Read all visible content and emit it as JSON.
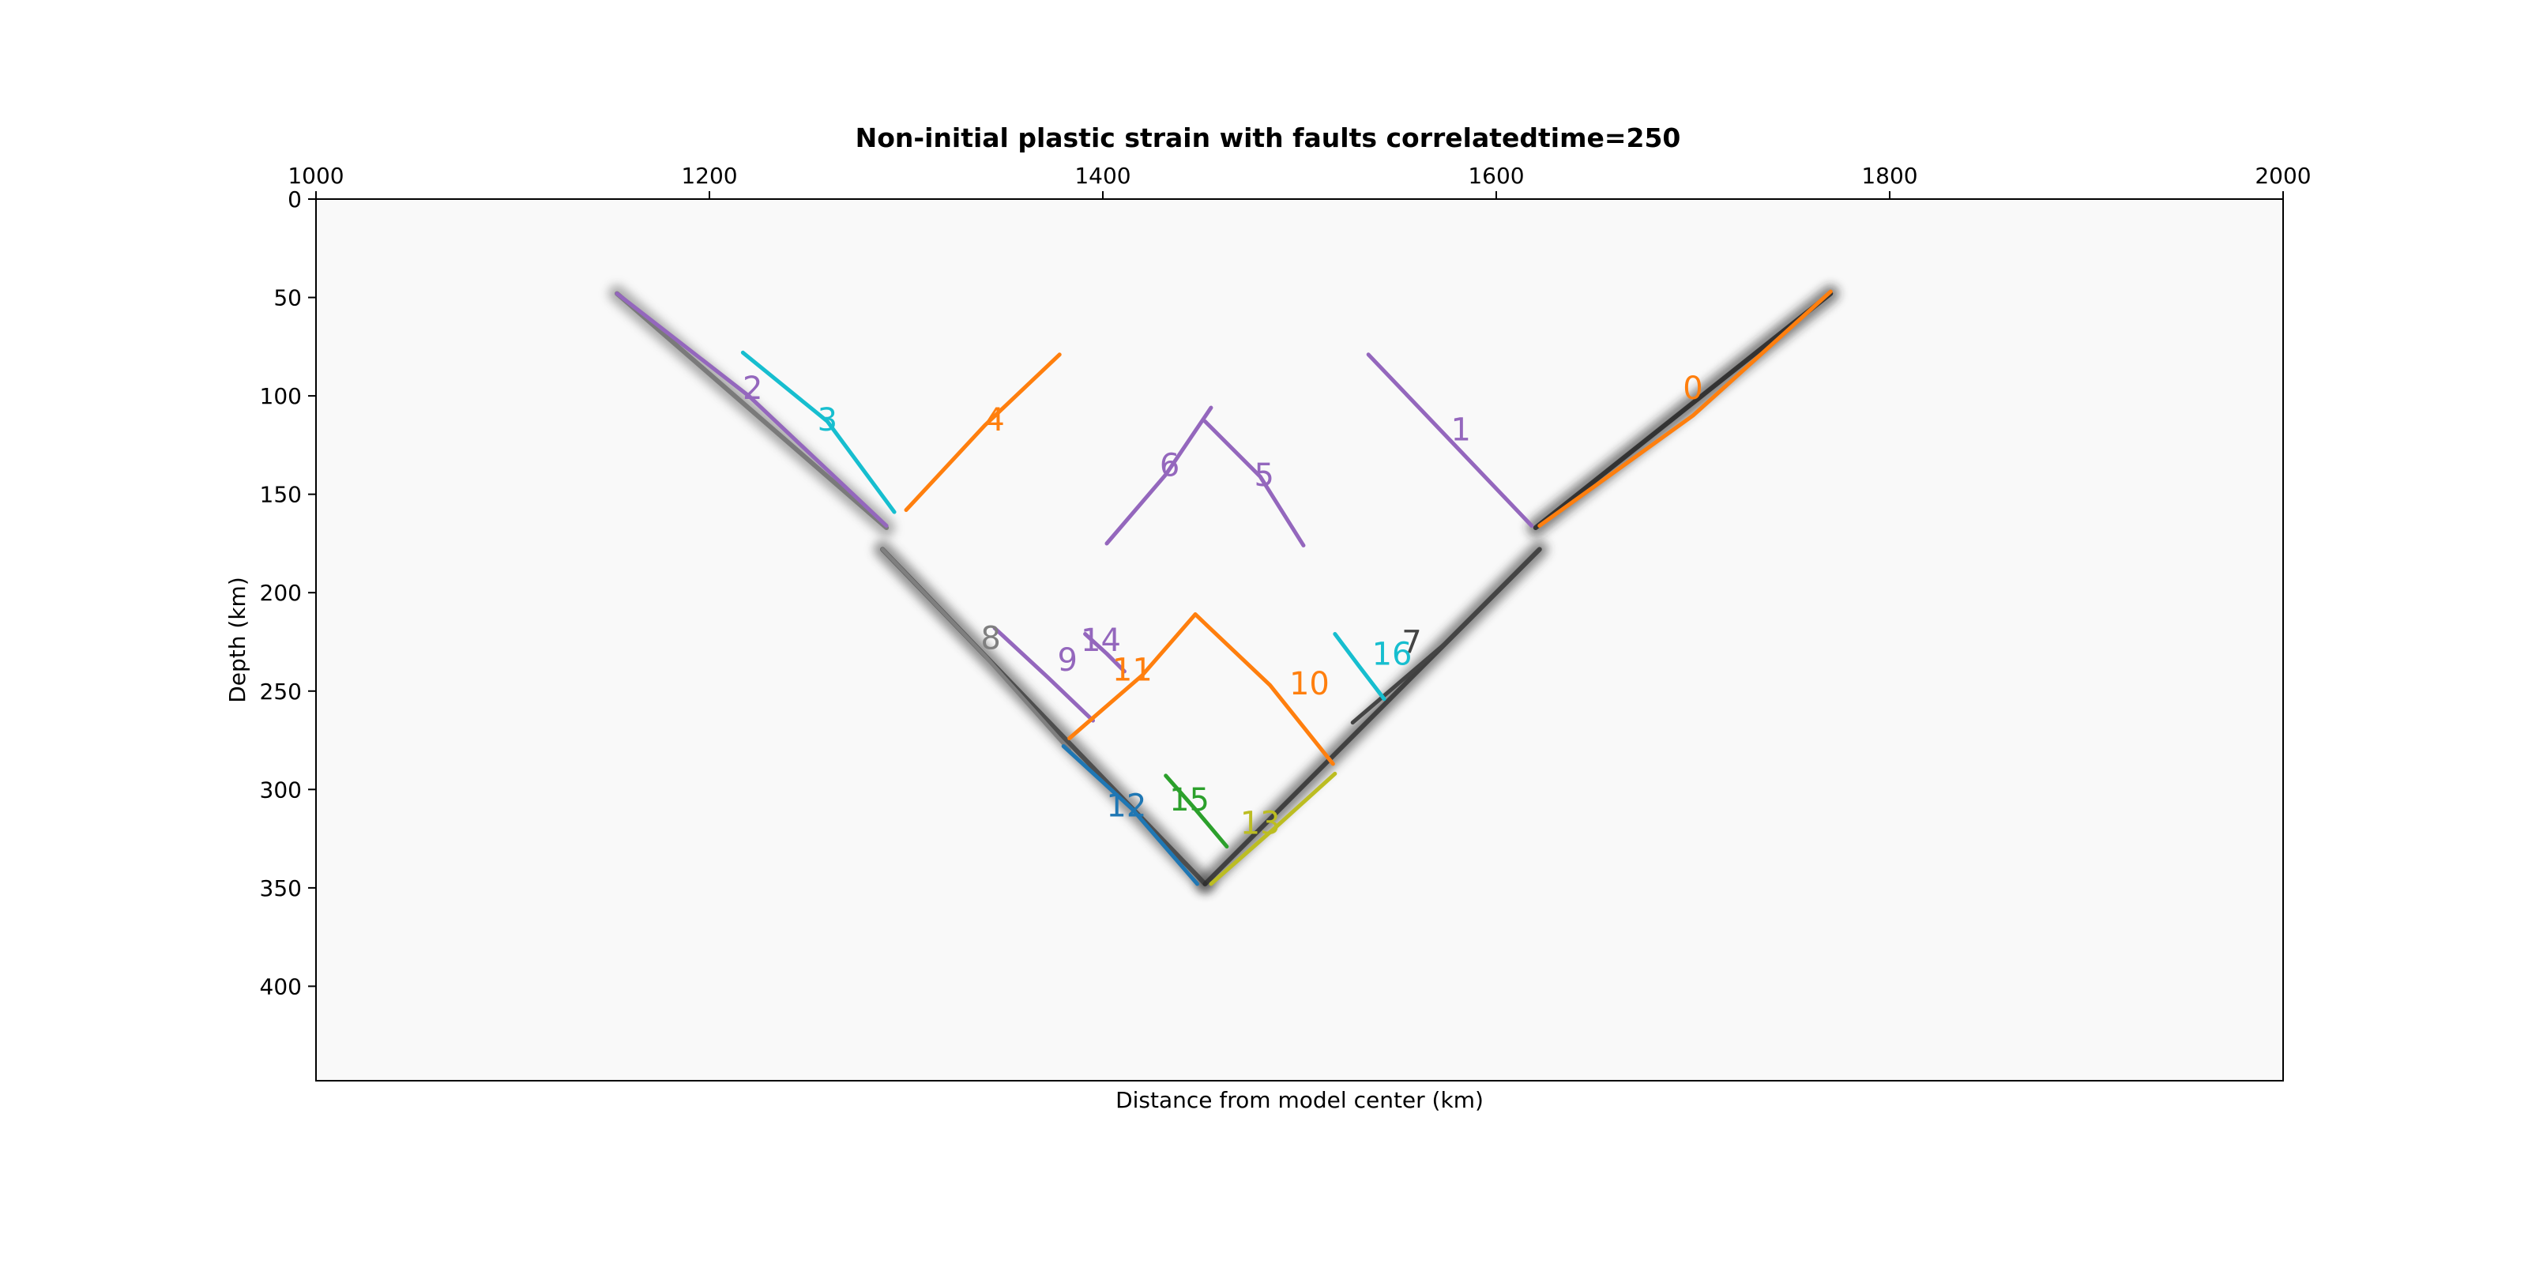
{
  "chart_data": {
    "type": "line",
    "title": "Non-initial plastic strain with faults correlatedtime=250",
    "xlabel": "Distance from model center (km)",
    "ylabel": "Depth (km)",
    "xlim": [
      1000,
      2000
    ],
    "ylim": [
      0,
      448
    ],
    "y_inverted": true,
    "x_axis_position": "top",
    "x_ticks": [
      1000,
      1200,
      1400,
      1600,
      1800,
      2000
    ],
    "y_ticks": [
      0,
      50,
      100,
      150,
      200,
      250,
      300,
      350,
      400
    ],
    "grid": false,
    "legend": "none",
    "background": {
      "description": "grayscale plastic strain field",
      "bands": [
        {
          "x": [
            1153,
            1290
          ],
          "y": [
            48,
            167
          ],
          "shade": "#6d6d6d"
        },
        {
          "x": [
            1620,
            1770
          ],
          "y": [
            167,
            48
          ],
          "shade": "#1e1e1e"
        },
        {
          "x": [
            1288,
            1452
          ],
          "y": [
            178,
            348
          ],
          "shade": "#3c3c3c"
        },
        {
          "x": [
            1452,
            1622
          ],
          "y": [
            348,
            178
          ],
          "shade": "#2d2d2d"
        }
      ]
    },
    "series": [
      {
        "label": "0",
        "color": "#ff7f0e",
        "x": [
          1622,
          1700,
          1770
        ],
        "y": [
          166,
          110,
          47
        ],
        "label_pos": [
          1700,
          96
        ]
      },
      {
        "label": "1",
        "color": "#9467bd",
        "x": [
          1535,
          1618
        ],
        "y": [
          79,
          166
        ],
        "label_pos": [
          1582,
          117
        ]
      },
      {
        "label": "2",
        "color": "#9467bd",
        "x": [
          1153,
          1220,
          1290
        ],
        "y": [
          48,
          100,
          166
        ],
        "label_pos": [
          1222,
          96
        ]
      },
      {
        "label": "3",
        "color": "#17becf",
        "x": [
          1217,
          1260,
          1294
        ],
        "y": [
          78,
          113,
          159
        ],
        "label_pos": [
          1260,
          112
        ]
      },
      {
        "label": "4",
        "color": "#ff7f0e",
        "x": [
          1300,
          1340,
          1378
        ],
        "y": [
          158,
          115,
          79
        ],
        "label_pos": [
          1345,
          112
        ]
      },
      {
        "label": "5",
        "color": "#9467bd",
        "x": [
          1452,
          1480,
          1502
        ],
        "y": [
          113,
          141,
          176
        ],
        "label_pos": [
          1482,
          140
        ]
      },
      {
        "label": "6",
        "color": "#9467bd",
        "x": [
          1402,
          1432,
          1455
        ],
        "y": [
          175,
          140,
          106
        ],
        "label_pos": [
          1434,
          135
        ]
      },
      {
        "label": "7",
        "color": "#444444",
        "x": [
          1527,
          1575,
          1622
        ],
        "y": [
          266,
          225,
          178
        ],
        "label_pos": [
          1557,
          225
        ]
      },
      {
        "label": "8",
        "color": "#7f7f7f",
        "x": [
          1288,
          1340,
          1383
        ],
        "y": [
          178,
          232,
          280
        ],
        "label_pos": [
          1343,
          223
        ]
      },
      {
        "label": "9",
        "color": "#9467bd",
        "x": [
          1345,
          1372,
          1395
        ],
        "y": [
          218,
          243,
          265
        ],
        "label_pos": [
          1382,
          234
        ]
      },
      {
        "label": "10",
        "color": "#ff7f0e",
        "x": [
          1447,
          1485,
          1517
        ],
        "y": [
          211,
          247,
          287
        ],
        "label_pos": [
          1505,
          246
        ]
      },
      {
        "label": "11",
        "color": "#ff7f0e",
        "x": [
          1383,
          1420,
          1447
        ],
        "y": [
          274,
          242,
          211
        ],
        "label_pos": [
          1415,
          239
        ]
      },
      {
        "label": "12",
        "color": "#1f77b4",
        "x": [
          1380,
          1415,
          1448
        ],
        "y": [
          278,
          310,
          348
        ],
        "label_pos": [
          1412,
          308
        ]
      },
      {
        "label": "13",
        "color": "#bcbd22",
        "x": [
          1455,
          1487,
          1518
        ],
        "y": [
          348,
          320,
          292
        ],
        "label_pos": [
          1480,
          317
        ]
      },
      {
        "label": "14",
        "color": "#9467bd",
        "x": [
          1391,
          1402,
          1411
        ],
        "y": [
          221,
          231,
          240
        ],
        "label_pos": [
          1399,
          224
        ]
      },
      {
        "label": "15",
        "color": "#2ca02c",
        "x": [
          1432,
          1447,
          1463
        ],
        "y": [
          293,
          310,
          329
        ],
        "label_pos": [
          1444,
          305
        ]
      },
      {
        "label": "16",
        "color": "#17becf",
        "x": [
          1518,
          1530,
          1543
        ],
        "y": [
          221,
          237,
          254
        ],
        "label_pos": [
          1547,
          231
        ]
      }
    ]
  }
}
